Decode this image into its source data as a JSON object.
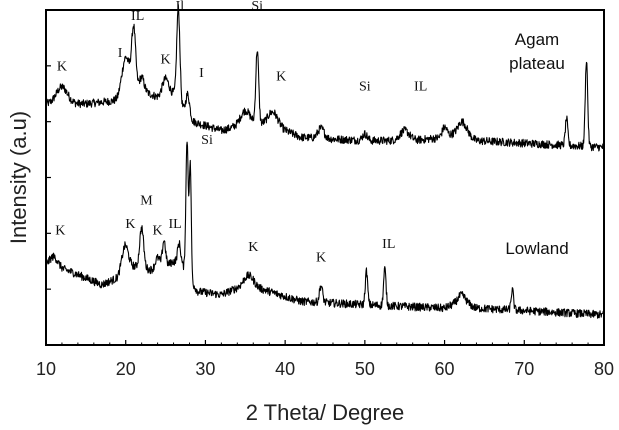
{
  "chart_data": {
    "type": "line",
    "xlabel": "2 Theta/ Degree",
    "ylabel": "Intensity (a.u)",
    "xlim": [
      10,
      80
    ],
    "x_ticks": [
      "10",
      "20",
      "30",
      "40",
      "50",
      "60",
      "70",
      "80"
    ],
    "ylim": [
      0,
      100
    ],
    "grid": false,
    "series": [
      {
        "name": "Agam plateau",
        "color": "#000000",
        "baseline": [
          [
            10,
            72
          ],
          [
            15,
            72
          ],
          [
            19,
            73
          ],
          [
            20,
            76
          ],
          [
            22,
            76
          ],
          [
            24,
            74
          ],
          [
            26,
            75
          ],
          [
            28,
            67
          ],
          [
            32,
            64
          ],
          [
            35,
            66
          ],
          [
            38,
            66
          ],
          [
            42,
            62
          ],
          [
            50,
            61
          ],
          [
            56,
            61
          ],
          [
            60,
            62
          ],
          [
            62,
            64
          ],
          [
            64,
            61
          ],
          [
            80,
            59
          ]
        ],
        "peaks": [
          [
            12,
            5,
            0.7
          ],
          [
            20,
            10,
            0.5
          ],
          [
            21,
            18,
            0.25
          ],
          [
            22,
            4,
            0.3
          ],
          [
            25,
            5,
            0.4
          ],
          [
            26.6,
            28,
            0.2
          ],
          [
            27.8,
            7,
            0.25
          ],
          [
            35,
            4,
            0.6
          ],
          [
            36.5,
            22,
            0.18
          ],
          [
            38.5,
            4,
            0.6
          ],
          [
            44.5,
            3,
            0.4
          ],
          [
            50,
            2,
            0.3
          ],
          [
            55,
            3,
            0.6
          ],
          [
            60,
            3,
            0.3
          ],
          [
            62.3,
            3,
            0.5
          ],
          [
            75.3,
            8,
            0.15
          ],
          [
            77.8,
            26,
            0.15
          ]
        ],
        "peak_labels": [
          {
            "text": "K",
            "x": 12,
            "y": 82
          },
          {
            "text": "I",
            "x": 19.3,
            "y": 86
          },
          {
            "text": "IL",
            "x": 21.5,
            "y": 97
          },
          {
            "text": "K",
            "x": 25,
            "y": 84
          },
          {
            "text": "Il",
            "x": 26.8,
            "y": 100
          },
          {
            "text": "I",
            "x": 29.5,
            "y": 80
          },
          {
            "text": "Si",
            "x": 36.5,
            "y": 100
          },
          {
            "text": "K",
            "x": 39.5,
            "y": 79
          },
          {
            "text": "Si",
            "x": 50,
            "y": 76
          },
          {
            "text": "IL",
            "x": 57,
            "y": 76
          }
        ]
      },
      {
        "name": "Lowland",
        "color": "#000000",
        "baseline": [
          [
            10,
            24
          ],
          [
            13,
            22
          ],
          [
            17,
            18
          ],
          [
            19,
            20
          ],
          [
            20,
            24
          ],
          [
            22,
            23
          ],
          [
            24,
            22
          ],
          [
            26,
            25
          ],
          [
            27,
            24
          ],
          [
            29,
            16
          ],
          [
            32,
            15
          ],
          [
            35,
            18
          ],
          [
            38,
            16
          ],
          [
            42,
            13
          ],
          [
            50,
            12
          ],
          [
            60,
            11
          ],
          [
            62,
            13
          ],
          [
            64,
            11
          ],
          [
            80,
            9
          ]
        ],
        "peaks": [
          [
            11,
            3,
            0.5
          ],
          [
            19.9,
            6,
            0.4
          ],
          [
            22,
            12,
            0.25
          ],
          [
            24,
            4,
            0.3
          ],
          [
            24.8,
            8,
            0.2
          ],
          [
            26.7,
            6,
            0.2
          ],
          [
            27.7,
            40,
            0.15
          ],
          [
            28.1,
            34,
            0.12
          ],
          [
            35.5,
            3,
            0.6
          ],
          [
            44.5,
            5,
            0.2
          ],
          [
            50.2,
            10,
            0.15
          ],
          [
            52.5,
            11,
            0.15
          ],
          [
            62.2,
            2,
            0.5
          ],
          [
            68.5,
            6,
            0.15
          ]
        ],
        "peak_labels": [
          {
            "text": "K",
            "x": 11.8,
            "y": 33
          },
          {
            "text": "K",
            "x": 20.6,
            "y": 35
          },
          {
            "text": "M",
            "x": 22.6,
            "y": 42
          },
          {
            "text": "K",
            "x": 24,
            "y": 33
          },
          {
            "text": "IL",
            "x": 26.2,
            "y": 35
          },
          {
            "text": "Si",
            "x": 30.2,
            "y": 60
          },
          {
            "text": "K",
            "x": 36,
            "y": 28
          },
          {
            "text": "K",
            "x": 44.5,
            "y": 25
          },
          {
            "text": "IL",
            "x": 53,
            "y": 29
          }
        ]
      }
    ],
    "series_labels": [
      {
        "lines": [
          "Agam",
          "plateau"
        ]
      },
      {
        "lines": [
          "Lowland"
        ]
      }
    ]
  }
}
